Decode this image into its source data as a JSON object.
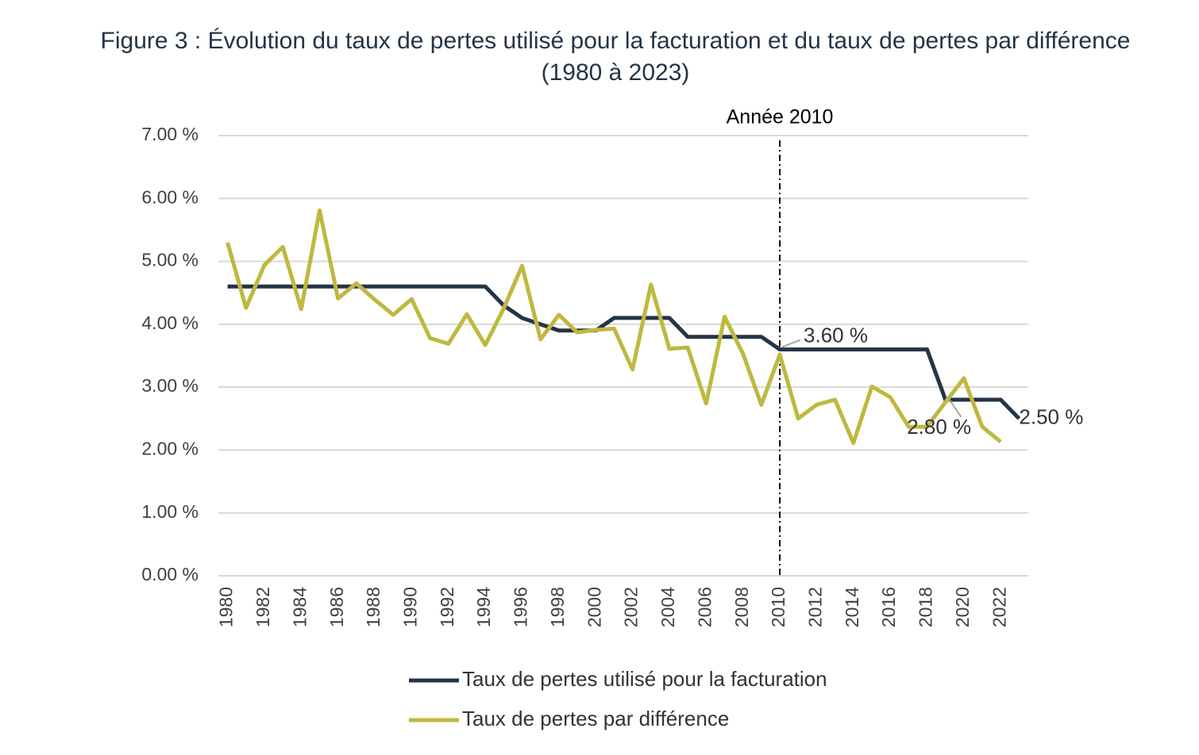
{
  "chart_data": {
    "type": "line",
    "title": "Figure 3 : Évolution du taux de pertes utilisé pour la facturation et du taux de pertes par différence (1980 à 2023)",
    "x": [
      1980,
      1981,
      1982,
      1983,
      1984,
      1985,
      1986,
      1987,
      1988,
      1989,
      1990,
      1991,
      1992,
      1993,
      1994,
      1995,
      1996,
      1997,
      1998,
      1999,
      2000,
      2001,
      2002,
      2003,
      2004,
      2005,
      2006,
      2007,
      2008,
      2009,
      2010,
      2011,
      2012,
      2013,
      2014,
      2015,
      2016,
      2017,
      2018,
      2019,
      2020,
      2021,
      2022,
      2023
    ],
    "xlim": [
      1979.5,
      2023.5
    ],
    "xticks": [
      1980,
      1982,
      1984,
      1986,
      1988,
      1990,
      1992,
      1994,
      1996,
      1998,
      2000,
      2002,
      2004,
      2006,
      2008,
      2010,
      2012,
      2014,
      2016,
      2018,
      2020,
      2022
    ],
    "ylim": [
      0,
      7
    ],
    "yticks": [
      {
        "value": 0,
        "label": "0.00 %"
      },
      {
        "value": 1,
        "label": "1.00 %"
      },
      {
        "value": 2,
        "label": "2.00 %"
      },
      {
        "value": 3,
        "label": "3.00 %"
      },
      {
        "value": 4,
        "label": "4.00 %"
      },
      {
        "value": 5,
        "label": "5.00 %"
      },
      {
        "value": 6,
        "label": "6.00 %"
      },
      {
        "value": 7,
        "label": "7.00 %"
      }
    ],
    "grid": true,
    "legend": "bottom",
    "annotations": [
      {
        "text": "Année 2010",
        "x": 2010
      }
    ],
    "series": [
      {
        "name": "Taux de pertes utilisé pour la facturation",
        "color": "#243447",
        "values": [
          4.6,
          4.6,
          4.6,
          4.6,
          4.6,
          4.6,
          4.6,
          4.6,
          4.6,
          4.6,
          4.6,
          4.6,
          4.6,
          4.6,
          4.6,
          4.3,
          4.1,
          4.0,
          3.9,
          3.9,
          3.9,
          4.1,
          4.1,
          4.1,
          4.1,
          3.8,
          3.8,
          3.8,
          3.8,
          3.8,
          3.6,
          3.6,
          3.6,
          3.6,
          3.6,
          3.6,
          3.6,
          3.6,
          3.6,
          2.8,
          2.8,
          2.8,
          2.8,
          2.5
        ],
        "value_labels": [
          null,
          null,
          null,
          null,
          null,
          null,
          null,
          null,
          null,
          null,
          null,
          null,
          null,
          null,
          null,
          null,
          null,
          null,
          null,
          null,
          null,
          null,
          null,
          null,
          null,
          null,
          null,
          null,
          null,
          null,
          "3.60 %",
          null,
          null,
          null,
          null,
          null,
          null,
          null,
          null,
          "2.80 %",
          null,
          null,
          null,
          "2.50 %"
        ]
      },
      {
        "name": "Taux de pertes par différence",
        "color": "#bfb840",
        "values": [
          5.3,
          4.26,
          4.94,
          5.23,
          4.24,
          5.81,
          4.41,
          4.65,
          4.39,
          4.15,
          4.4,
          3.78,
          3.69,
          4.16,
          3.67,
          4.25,
          4.93,
          3.76,
          4.15,
          3.87,
          3.91,
          3.93,
          3.28,
          4.63,
          3.61,
          3.63,
          2.74,
          4.12,
          3.53,
          2.72,
          3.52,
          2.5,
          2.72,
          2.8,
          2.11,
          3.01,
          2.84,
          2.37,
          2.37,
          2.76,
          3.14,
          2.37,
          2.13,
          null
        ]
      }
    ]
  }
}
